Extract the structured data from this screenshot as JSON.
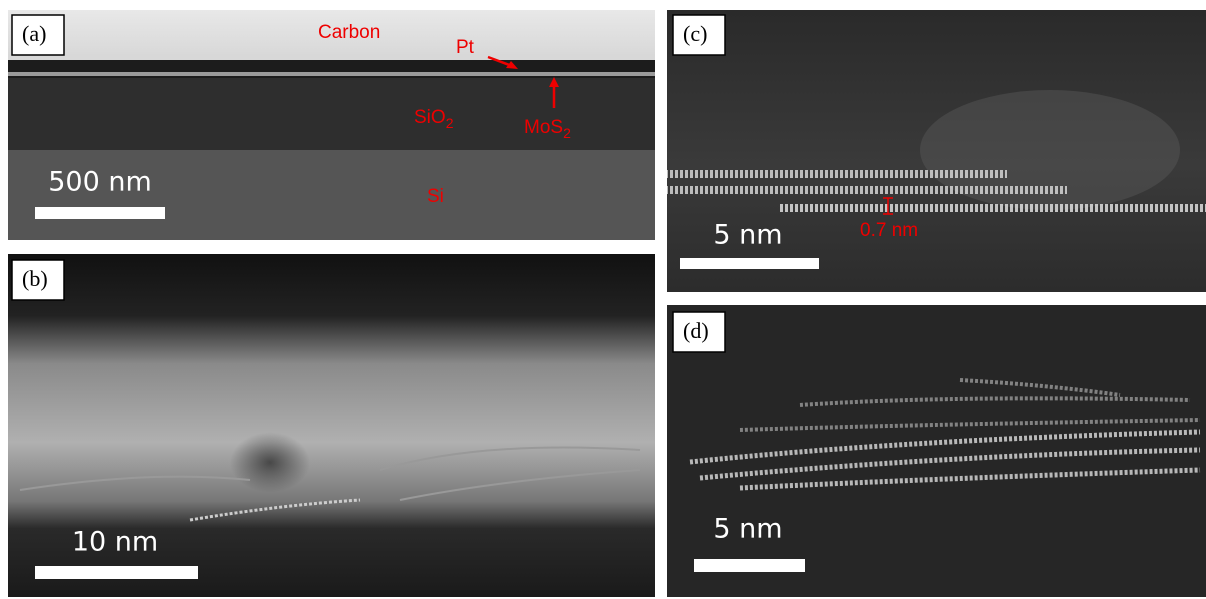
{
  "panels": [
    {
      "label": "(a)",
      "scale_bar": "500 nm",
      "annotations": {
        "carbon": "Carbon",
        "pt": "Pt",
        "sio2": {
          "base": "SiO",
          "sub": "2"
        },
        "mos2": {
          "base": "MoS",
          "sub": "2"
        },
        "si": "Si"
      }
    },
    {
      "label": "(b)",
      "scale_bar": "10 nm"
    },
    {
      "label": "(c)",
      "scale_bar": "5 nm",
      "spacing": "0.7 nm"
    },
    {
      "label": "(d)",
      "scale_bar": "5 nm"
    }
  ]
}
